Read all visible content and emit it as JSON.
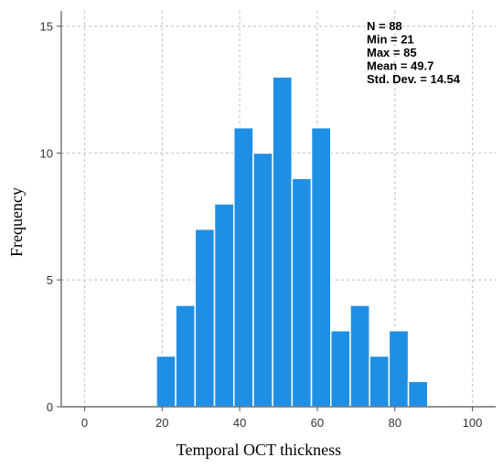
{
  "chart_data": {
    "type": "bar",
    "subtype": "histogram",
    "xlabel": "Temporal OCT thickness",
    "ylabel": "Frequency",
    "xlim": [
      -6,
      106
    ],
    "ylim": [
      0,
      15.6
    ],
    "x_ticks": [
      "0",
      "20",
      "40",
      "60",
      "80",
      "100"
    ],
    "y_ticks": [
      "0",
      "5",
      "10",
      "15"
    ],
    "grid": true,
    "bin_width": 5,
    "bins": [
      {
        "start": 18.5,
        "end": 23.5,
        "count": 2
      },
      {
        "start": 23.5,
        "end": 28.5,
        "count": 4
      },
      {
        "start": 28.5,
        "end": 33.5,
        "count": 7
      },
      {
        "start": 33.5,
        "end": 38.5,
        "count": 8
      },
      {
        "start": 38.5,
        "end": 43.5,
        "count": 11
      },
      {
        "start": 43.5,
        "end": 48.5,
        "count": 10
      },
      {
        "start": 48.5,
        "end": 53.5,
        "count": 13
      },
      {
        "start": 53.5,
        "end": 58.5,
        "count": 9
      },
      {
        "start": 58.5,
        "end": 63.5,
        "count": 11
      },
      {
        "start": 63.5,
        "end": 68.5,
        "count": 3
      },
      {
        "start": 68.5,
        "end": 73.5,
        "count": 4
      },
      {
        "start": 73.5,
        "end": 78.5,
        "count": 2
      },
      {
        "start": 78.5,
        "end": 83.5,
        "count": 3
      },
      {
        "start": 83.5,
        "end": 88.5,
        "count": 1
      }
    ],
    "statistics": [
      "N = 88",
      "Min = 21",
      "Max = 85",
      "Mean = 49.7",
      "Std. Dev. = 14.54"
    ],
    "colors": {
      "bar_fill": "#1f8fe6",
      "bar_stroke": "#ffffff",
      "grid": "#c8c8c8",
      "axis": "#555555"
    }
  }
}
